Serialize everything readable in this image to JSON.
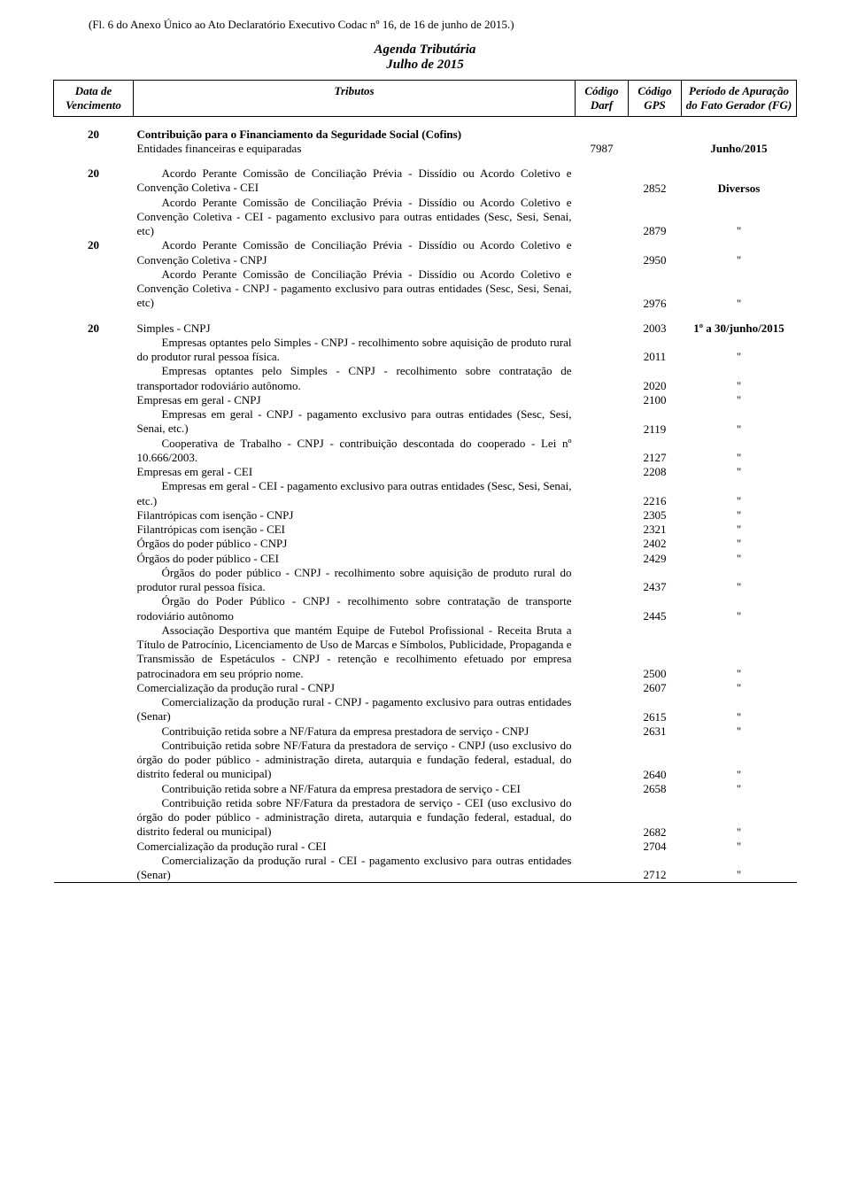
{
  "header_reference": "(Fl. 6 do Anexo Único ao Ato Declaratório Executivo Codac nº 16, de 16 de junho de 2015.)",
  "title": {
    "main": "Agenda Tributária",
    "sub": "Julho de 2015"
  },
  "columns": {
    "data": "Data de Vencimento",
    "tributos": "Tributos",
    "darf": "Código Darf",
    "gps": "Código GPS",
    "periodo": "Período de Apuração do Fato Gerador (FG)"
  },
  "s1": {
    "data": "20",
    "title": "Contribuição para o Financiamento da Seguridade Social (Cofins)",
    "r1_desc": "Entidades financeiras e equiparadas",
    "r1_darf": "7987",
    "r1_periodo": "Junho/2015"
  },
  "s2": {
    "data1": "20",
    "r1_desc": "Acordo Perante Comissão de Conciliação Prévia - Dissídio ou Acordo Coletivo e Convenção Coletiva - CEI",
    "r1_gps": "2852",
    "r1_periodo": "Diversos",
    "r2_desc": "Acordo Perante Comissão de Conciliação Prévia - Dissídio ou Acordo Coletivo e Convenção Coletiva - CEI - pagamento exclusivo para outras entidades (Sesc, Sesi, Senai, etc)",
    "r2_gps": "2879",
    "r2_periodo": "\"",
    "data2": "20",
    "r3_desc": "Acordo Perante Comissão de Conciliação Prévia - Dissídio ou Acordo Coletivo e Convenção Coletiva - CNPJ",
    "r3_gps": "2950",
    "r3_periodo": "\"",
    "r4_desc": "Acordo Perante Comissão de Conciliação Prévia - Dissídio ou Acordo Coletivo e Convenção Coletiva - CNPJ - pagamento exclusivo para outras entidades (Sesc, Sesi, Senai, etc)",
    "r4_gps": "2976",
    "r4_periodo": "\""
  },
  "s3": {
    "data": "20",
    "r1_desc": "Simples - CNPJ",
    "r1_gps": "2003",
    "r1_periodo": "1º a 30/junho/2015",
    "r2_desc": "Empresas optantes pelo Simples - CNPJ - recolhimento sobre aquisição de produto rural do produtor rural pessoa física.",
    "r2_gps": "2011",
    "r2_periodo": "\"",
    "r3_desc": "Empresas optantes pelo Simples - CNPJ - recolhimento sobre contratação de transportador rodoviário autônomo.",
    "r3_gps": "2020",
    "r3_periodo": "\"",
    "r4_desc": "Empresas em geral - CNPJ",
    "r4_gps": "2100",
    "r4_periodo": "\"",
    "r5_desc": "Empresas em geral - CNPJ - pagamento exclusivo para outras entidades (Sesc, Sesi, Senai, etc.)",
    "r5_gps": "2119",
    "r5_periodo": "\"",
    "r6_desc": "Cooperativa de Trabalho - CNPJ - contribuição descontada do cooperado - Lei nº 10.666/2003.",
    "r6_gps": "2127",
    "r6_periodo": "\"",
    "r7_desc": "Empresas em geral - CEI",
    "r7_gps": "2208",
    "r7_periodo": "\"",
    "r8_desc": "Empresas em geral - CEI - pagamento exclusivo para outras entidades (Sesc, Sesi, Senai, etc.)",
    "r8_gps": "2216",
    "r8_periodo": "\"",
    "r9_desc": "Filantrópicas com isenção - CNPJ",
    "r9_gps": "2305",
    "r9_periodo": "\"",
    "r10_desc": "Filantrópicas com isenção - CEI",
    "r10_gps": "2321",
    "r10_periodo": "\"",
    "r11_desc": "Órgãos do poder público - CNPJ",
    "r11_gps": "2402",
    "r11_periodo": "\"",
    "r12_desc": "Órgãos do poder público - CEI",
    "r12_gps": "2429",
    "r12_periodo": "\"",
    "r13_desc": "Órgãos do poder público - CNPJ - recolhimento sobre aquisição de produto rural do produtor rural pessoa física.",
    "r13_gps": "2437",
    "r13_periodo": "\"",
    "r14_desc": "Órgão do Poder Público - CNPJ - recolhimento sobre contratação de transporte rodoviário autônomo",
    "r14_gps": "2445",
    "r14_periodo": "\"",
    "r15_desc": "Associação Desportiva que mantém Equipe de Futebol Profissional - Receita Bruta a Título de Patrocínio, Licenciamento de Uso de Marcas e Símbolos, Publicidade, Propaganda e Transmissão de Espetáculos - CNPJ - retenção e recolhimento efetuado por empresa patrocinadora em seu próprio nome.",
    "r15_gps": "2500",
    "r15_periodo": "\"",
    "r16_desc": "Comercialização da produção rural - CNPJ",
    "r16_gps": "2607",
    "r16_periodo": "\"",
    "r17_desc": "Comercialização da produção rural - CNPJ - pagamento exclusivo para outras entidades (Senar)",
    "r17_gps": "2615",
    "r17_periodo": "\"",
    "r18_desc": "Contribuição retida sobre a NF/Fatura da empresa prestadora de serviço - CNPJ",
    "r18_gps": "2631",
    "r18_periodo": "\"",
    "r19_desc": "Contribuição retida sobre NF/Fatura da prestadora de serviço - CNPJ (uso exclusivo do órgão do poder público - administração direta, autarquia e fundação federal, estadual, do distrito federal ou municipal)",
    "r19_gps": "2640",
    "r19_periodo": "\"",
    "r20_desc": "Contribuição retida sobre a NF/Fatura da empresa prestadora de serviço - CEI",
    "r20_gps": "2658",
    "r20_periodo": "\"",
    "r21_desc": "Contribuição retida sobre NF/Fatura da prestadora de serviço - CEI (uso exclusivo do órgão do poder público - administração direta, autarquia e fundação federal, estadual, do distrito federal ou municipal)",
    "r21_gps": "2682",
    "r21_periodo": "\"",
    "r22_desc": "Comercialização da produção rural - CEI",
    "r22_gps": "2704",
    "r22_periodo": "\"",
    "r23_desc": "Comercialização da produção rural - CEI - pagamento exclusivo para outras entidades (Senar)",
    "r23_gps": "2712",
    "r23_periodo": "\""
  }
}
